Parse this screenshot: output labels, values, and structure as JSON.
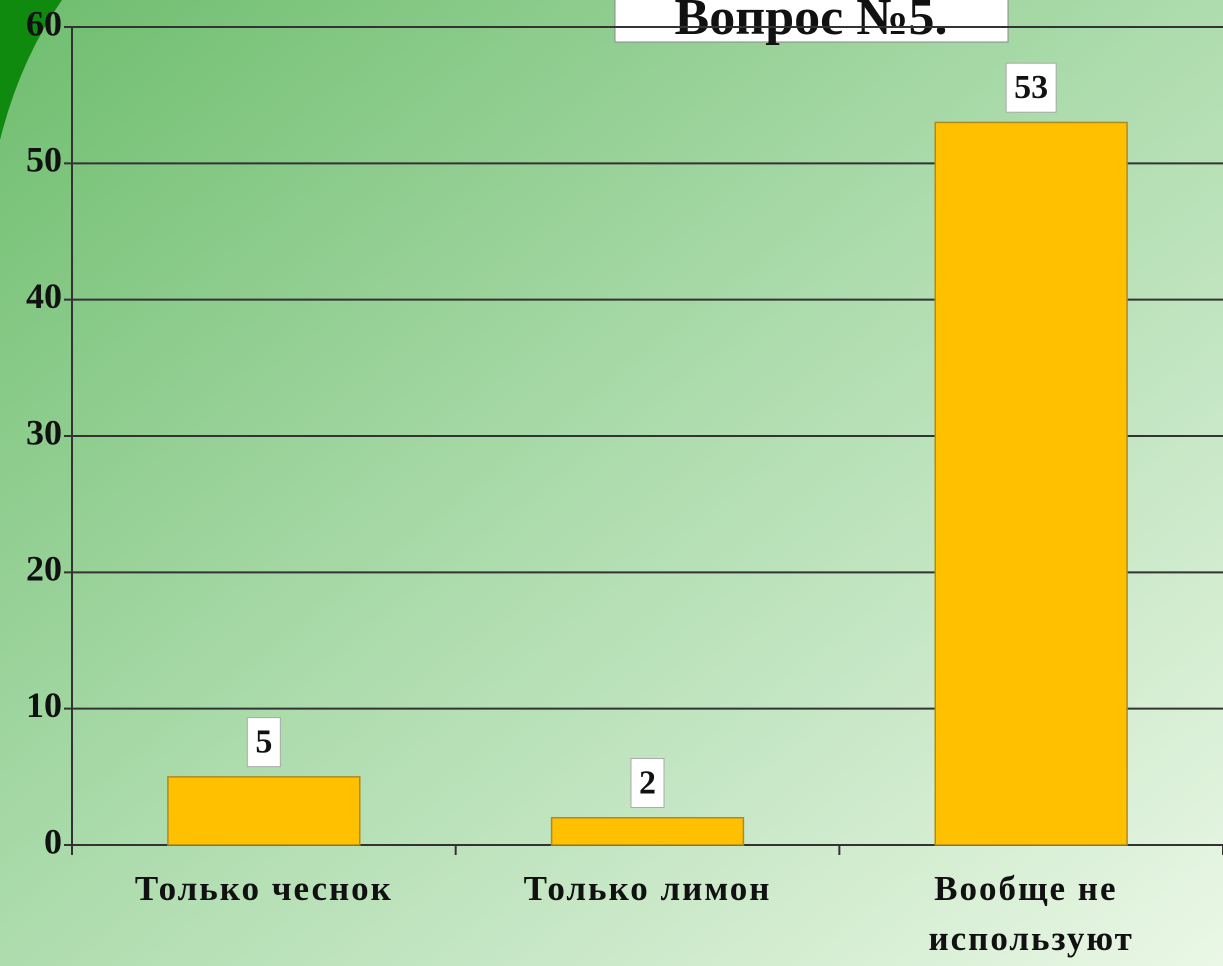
{
  "chart_data": {
    "type": "bar",
    "title": "Вопрос №5.",
    "categories": [
      "Только чеснок",
      "Только лимон",
      "Вообще не используют"
    ],
    "values": [
      5,
      2,
      53
    ],
    "color": "#ffc000",
    "ylim": [
      0,
      60
    ],
    "yticks": [
      0,
      10,
      20,
      30,
      40,
      50,
      60
    ],
    "grid": true
  }
}
